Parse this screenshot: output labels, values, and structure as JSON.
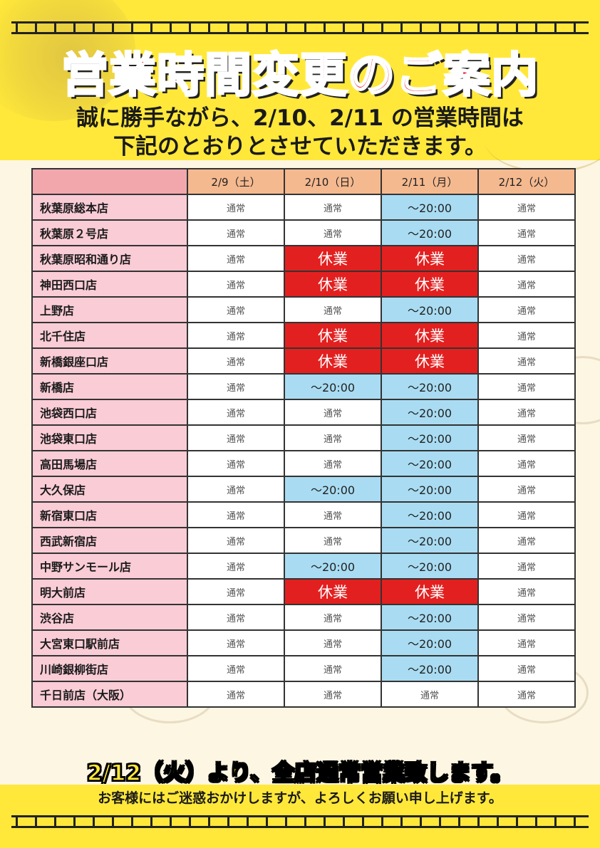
{
  "title": "営業時間変更のご案内",
  "subtitle_line1": "誠に勝手ながら、2/10、2/11 の営業時間は",
  "subtitle_line2": "下記のとおりとさせていただきます。",
  "columns": [
    "2/9（土）",
    "2/10（日）",
    "2/11（月）",
    "2/12（火）"
  ],
  "rows": [
    {
      "store": "秋葉原総本店",
      "cells": [
        {
          "text": "通常",
          "type": "normal"
        },
        {
          "text": "通常",
          "type": "normal"
        },
        {
          "text": "～20:00",
          "type": "short"
        },
        {
          "text": "通常",
          "type": "normal"
        }
      ]
    },
    {
      "store": "秋葉原２号店",
      "cells": [
        {
          "text": "通常",
          "type": "normal"
        },
        {
          "text": "通常",
          "type": "normal"
        },
        {
          "text": "～20:00",
          "type": "short"
        },
        {
          "text": "通常",
          "type": "normal"
        }
      ]
    },
    {
      "store": "秋葉原昭和通り店",
      "cells": [
        {
          "text": "通常",
          "type": "normal"
        },
        {
          "text": "休業",
          "type": "closed"
        },
        {
          "text": "休業",
          "type": "closed"
        },
        {
          "text": "通常",
          "type": "normal"
        }
      ]
    },
    {
      "store": "神田西口店",
      "cells": [
        {
          "text": "通常",
          "type": "normal"
        },
        {
          "text": "休業",
          "type": "closed"
        },
        {
          "text": "休業",
          "type": "closed"
        },
        {
          "text": "通常",
          "type": "normal"
        }
      ]
    },
    {
      "store": "上野店",
      "cells": [
        {
          "text": "通常",
          "type": "normal"
        },
        {
          "text": "通常",
          "type": "normal"
        },
        {
          "text": "～20:00",
          "type": "short"
        },
        {
          "text": "通常",
          "type": "normal"
        }
      ]
    },
    {
      "store": "北千住店",
      "cells": [
        {
          "text": "通常",
          "type": "normal"
        },
        {
          "text": "休業",
          "type": "closed"
        },
        {
          "text": "休業",
          "type": "closed"
        },
        {
          "text": "通常",
          "type": "normal"
        }
      ]
    },
    {
      "store": "新橋銀座口店",
      "cells": [
        {
          "text": "通常",
          "type": "normal"
        },
        {
          "text": "休業",
          "type": "closed"
        },
        {
          "text": "休業",
          "type": "closed"
        },
        {
          "text": "通常",
          "type": "normal"
        }
      ]
    },
    {
      "store": "新橋店",
      "cells": [
        {
          "text": "通常",
          "type": "normal"
        },
        {
          "text": "～20:00",
          "type": "short"
        },
        {
          "text": "～20:00",
          "type": "short"
        },
        {
          "text": "通常",
          "type": "normal"
        }
      ]
    },
    {
      "store": "池袋西口店",
      "cells": [
        {
          "text": "通常",
          "type": "normal"
        },
        {
          "text": "通常",
          "type": "normal"
        },
        {
          "text": "～20:00",
          "type": "short"
        },
        {
          "text": "通常",
          "type": "normal"
        }
      ]
    },
    {
      "store": "池袋東口店",
      "cells": [
        {
          "text": "通常",
          "type": "normal"
        },
        {
          "text": "通常",
          "type": "normal"
        },
        {
          "text": "～20:00",
          "type": "short"
        },
        {
          "text": "通常",
          "type": "normal"
        }
      ]
    },
    {
      "store": "高田馬場店",
      "cells": [
        {
          "text": "通常",
          "type": "normal"
        },
        {
          "text": "通常",
          "type": "normal"
        },
        {
          "text": "～20:00",
          "type": "short"
        },
        {
          "text": "通常",
          "type": "normal"
        }
      ]
    },
    {
      "store": "大久保店",
      "cells": [
        {
          "text": "通常",
          "type": "normal"
        },
        {
          "text": "～20:00",
          "type": "short"
        },
        {
          "text": "～20:00",
          "type": "short"
        },
        {
          "text": "通常",
          "type": "normal"
        }
      ]
    },
    {
      "store": "新宿東口店",
      "cells": [
        {
          "text": "通常",
          "type": "normal"
        },
        {
          "text": "通常",
          "type": "normal"
        },
        {
          "text": "～20:00",
          "type": "short"
        },
        {
          "text": "通常",
          "type": "normal"
        }
      ]
    },
    {
      "store": "西武新宿店",
      "cells": [
        {
          "text": "通常",
          "type": "normal"
        },
        {
          "text": "通常",
          "type": "normal"
        },
        {
          "text": "～20:00",
          "type": "short"
        },
        {
          "text": "通常",
          "type": "normal"
        }
      ]
    },
    {
      "store": "中野サンモール店",
      "cells": [
        {
          "text": "通常",
          "type": "normal"
        },
        {
          "text": "～20:00",
          "type": "short"
        },
        {
          "text": "～20:00",
          "type": "short"
        },
        {
          "text": "通常",
          "type": "normal"
        }
      ]
    },
    {
      "store": "明大前店",
      "cells": [
        {
          "text": "通常",
          "type": "normal"
        },
        {
          "text": "休業",
          "type": "closed"
        },
        {
          "text": "休業",
          "type": "closed"
        },
        {
          "text": "通常",
          "type": "normal"
        }
      ]
    },
    {
      "store": "渋谷店",
      "cells": [
        {
          "text": "通常",
          "type": "normal"
        },
        {
          "text": "通常",
          "type": "normal"
        },
        {
          "text": "～20:00",
          "type": "short"
        },
        {
          "text": "通常",
          "type": "normal"
        }
      ]
    },
    {
      "store": "大宮東口駅前店",
      "cells": [
        {
          "text": "通常",
          "type": "normal"
        },
        {
          "text": "通常",
          "type": "normal"
        },
        {
          "text": "～20:00",
          "type": "short"
        },
        {
          "text": "通常",
          "type": "normal"
        }
      ]
    },
    {
      "store": "川崎銀柳街店",
      "cells": [
        {
          "text": "通常",
          "type": "normal"
        },
        {
          "text": "通常",
          "type": "normal"
        },
        {
          "text": "～20:00",
          "type": "short"
        },
        {
          "text": "通常",
          "type": "normal"
        }
      ]
    },
    {
      "store": "千日前店（大阪）",
      "cells": [
        {
          "text": "通常",
          "type": "normal"
        },
        {
          "text": "通常",
          "type": "normal"
        },
        {
          "text": "通常",
          "type": "normal"
        },
        {
          "text": "通常",
          "type": "normal"
        }
      ]
    }
  ],
  "notice": "2/12（火）より、全店通常営業致します。",
  "apology": "お客様にはご迷惑おかけしますが、よろしくお願い申し上げます。",
  "colors": {
    "yellow": "#ffe83a",
    "title_red": "#e32020",
    "closed_red": "#e32020",
    "short_blue": "#a9dcf2",
    "header_orange": "#f5b98f",
    "store_pink": "#f9ccd6"
  }
}
